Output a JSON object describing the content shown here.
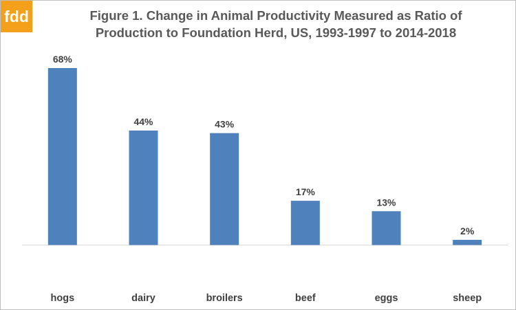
{
  "logo": {
    "text": "fdd",
    "color": "#f5a01a"
  },
  "title": {
    "line1": "Figure 1.  Change in Animal Productivity Measured as Ratio of",
    "line2": "Production to Foundation Herd, US, 1993-1997 to 2014-2018"
  },
  "chart_data": {
    "type": "bar",
    "title": "Figure 1.  Change in Animal Productivity Measured as Ratio of Production to Foundation Herd, US, 1993-1997 to 2014-2018",
    "categories": [
      "hogs",
      "dairy",
      "broilers",
      "beef",
      "eggs",
      "sheep"
    ],
    "values": [
      68,
      44,
      43,
      17,
      13,
      2
    ],
    "data_labels": [
      "68%",
      "44%",
      "43%",
      "17%",
      "13%",
      "2%"
    ],
    "unit": "%",
    "ylim": [
      0,
      70
    ],
    "grid": false,
    "legend": "none",
    "bar_color": "#4f81bd"
  }
}
